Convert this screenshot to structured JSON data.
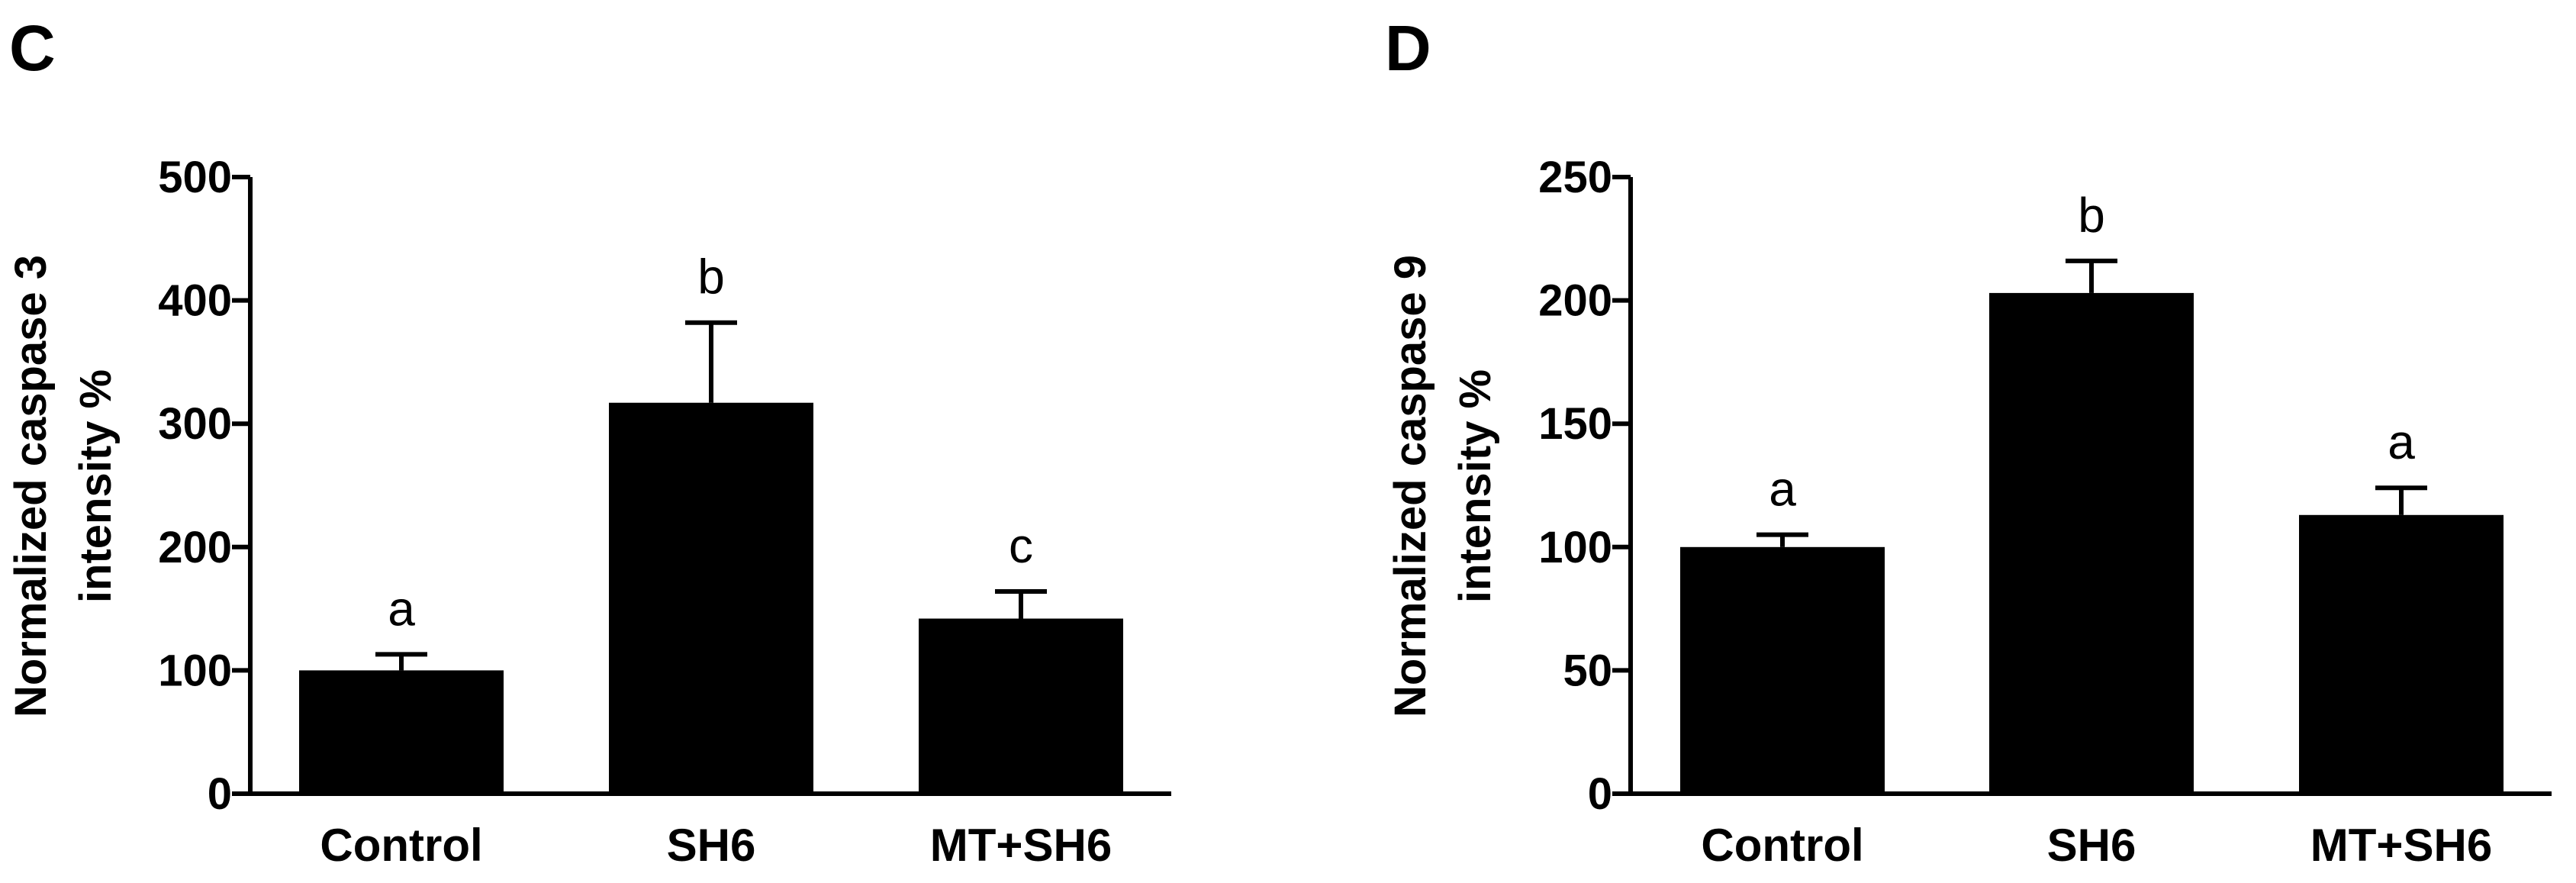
{
  "chart_data": [
    {
      "panel_label": "C",
      "type": "bar",
      "categories": [
        "Control",
        "SH6",
        "MT+SH6"
      ],
      "values": [
        100,
        317,
        142
      ],
      "errors": [
        13,
        65,
        22
      ],
      "significance_letters": [
        "a",
        "b",
        "c"
      ],
      "title": "",
      "xlabel": "",
      "ylabel_lines": [
        "Normalized caspase 3",
        "intensity %"
      ],
      "ylim": [
        0,
        500
      ],
      "yticks": [
        0,
        100,
        200,
        300,
        400,
        500
      ],
      "grid": false,
      "legend": "none",
      "bar_color": "#000000"
    },
    {
      "panel_label": "D",
      "type": "bar",
      "categories": [
        "Control",
        "SH6",
        "MT+SH6"
      ],
      "values": [
        100,
        203,
        113
      ],
      "errors": [
        5,
        13,
        11
      ],
      "significance_letters": [
        "a",
        "b",
        "a"
      ],
      "title": "",
      "xlabel": "",
      "ylabel_lines": [
        "Normalized caspase 9",
        "intensity %"
      ],
      "ylim": [
        0,
        250
      ],
      "yticks": [
        0,
        50,
        100,
        150,
        200,
        250
      ],
      "grid": false,
      "legend": "none",
      "bar_color": "#000000"
    }
  ]
}
